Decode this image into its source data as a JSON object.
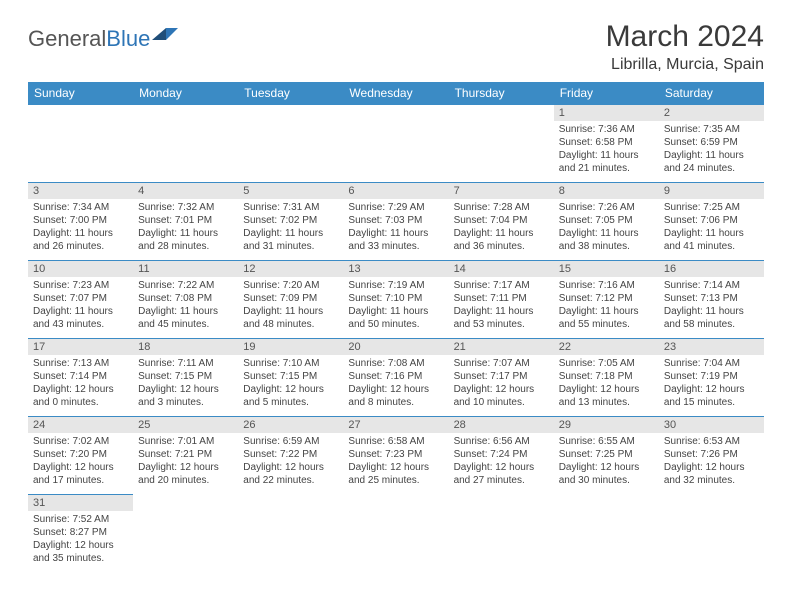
{
  "logo": {
    "general": "General",
    "blue": "Blue"
  },
  "title": "March 2024",
  "location": "Librilla, Murcia, Spain",
  "weekday_labels": [
    "Sunday",
    "Monday",
    "Tuesday",
    "Wednesday",
    "Thursday",
    "Friday",
    "Saturday"
  ],
  "colors": {
    "header_bg": "#3b8bc5",
    "header_fg": "#ffffff",
    "daynum_bg": "#e6e6e6",
    "border": "#3b8bc5"
  },
  "grid": [
    [
      null,
      null,
      null,
      null,
      null,
      {
        "n": "1",
        "sr": "Sunrise: 7:36 AM",
        "ss": "Sunset: 6:58 PM",
        "dl": "Daylight: 11 hours and 21 minutes."
      },
      {
        "n": "2",
        "sr": "Sunrise: 7:35 AM",
        "ss": "Sunset: 6:59 PM",
        "dl": "Daylight: 11 hours and 24 minutes."
      }
    ],
    [
      {
        "n": "3",
        "sr": "Sunrise: 7:34 AM",
        "ss": "Sunset: 7:00 PM",
        "dl": "Daylight: 11 hours and 26 minutes."
      },
      {
        "n": "4",
        "sr": "Sunrise: 7:32 AM",
        "ss": "Sunset: 7:01 PM",
        "dl": "Daylight: 11 hours and 28 minutes."
      },
      {
        "n": "5",
        "sr": "Sunrise: 7:31 AM",
        "ss": "Sunset: 7:02 PM",
        "dl": "Daylight: 11 hours and 31 minutes."
      },
      {
        "n": "6",
        "sr": "Sunrise: 7:29 AM",
        "ss": "Sunset: 7:03 PM",
        "dl": "Daylight: 11 hours and 33 minutes."
      },
      {
        "n": "7",
        "sr": "Sunrise: 7:28 AM",
        "ss": "Sunset: 7:04 PM",
        "dl": "Daylight: 11 hours and 36 minutes."
      },
      {
        "n": "8",
        "sr": "Sunrise: 7:26 AM",
        "ss": "Sunset: 7:05 PM",
        "dl": "Daylight: 11 hours and 38 minutes."
      },
      {
        "n": "9",
        "sr": "Sunrise: 7:25 AM",
        "ss": "Sunset: 7:06 PM",
        "dl": "Daylight: 11 hours and 41 minutes."
      }
    ],
    [
      {
        "n": "10",
        "sr": "Sunrise: 7:23 AM",
        "ss": "Sunset: 7:07 PM",
        "dl": "Daylight: 11 hours and 43 minutes."
      },
      {
        "n": "11",
        "sr": "Sunrise: 7:22 AM",
        "ss": "Sunset: 7:08 PM",
        "dl": "Daylight: 11 hours and 45 minutes."
      },
      {
        "n": "12",
        "sr": "Sunrise: 7:20 AM",
        "ss": "Sunset: 7:09 PM",
        "dl": "Daylight: 11 hours and 48 minutes."
      },
      {
        "n": "13",
        "sr": "Sunrise: 7:19 AM",
        "ss": "Sunset: 7:10 PM",
        "dl": "Daylight: 11 hours and 50 minutes."
      },
      {
        "n": "14",
        "sr": "Sunrise: 7:17 AM",
        "ss": "Sunset: 7:11 PM",
        "dl": "Daylight: 11 hours and 53 minutes."
      },
      {
        "n": "15",
        "sr": "Sunrise: 7:16 AM",
        "ss": "Sunset: 7:12 PM",
        "dl": "Daylight: 11 hours and 55 minutes."
      },
      {
        "n": "16",
        "sr": "Sunrise: 7:14 AM",
        "ss": "Sunset: 7:13 PM",
        "dl": "Daylight: 11 hours and 58 minutes."
      }
    ],
    [
      {
        "n": "17",
        "sr": "Sunrise: 7:13 AM",
        "ss": "Sunset: 7:14 PM",
        "dl": "Daylight: 12 hours and 0 minutes."
      },
      {
        "n": "18",
        "sr": "Sunrise: 7:11 AM",
        "ss": "Sunset: 7:15 PM",
        "dl": "Daylight: 12 hours and 3 minutes."
      },
      {
        "n": "19",
        "sr": "Sunrise: 7:10 AM",
        "ss": "Sunset: 7:15 PM",
        "dl": "Daylight: 12 hours and 5 minutes."
      },
      {
        "n": "20",
        "sr": "Sunrise: 7:08 AM",
        "ss": "Sunset: 7:16 PM",
        "dl": "Daylight: 12 hours and 8 minutes."
      },
      {
        "n": "21",
        "sr": "Sunrise: 7:07 AM",
        "ss": "Sunset: 7:17 PM",
        "dl": "Daylight: 12 hours and 10 minutes."
      },
      {
        "n": "22",
        "sr": "Sunrise: 7:05 AM",
        "ss": "Sunset: 7:18 PM",
        "dl": "Daylight: 12 hours and 13 minutes."
      },
      {
        "n": "23",
        "sr": "Sunrise: 7:04 AM",
        "ss": "Sunset: 7:19 PM",
        "dl": "Daylight: 12 hours and 15 minutes."
      }
    ],
    [
      {
        "n": "24",
        "sr": "Sunrise: 7:02 AM",
        "ss": "Sunset: 7:20 PM",
        "dl": "Daylight: 12 hours and 17 minutes."
      },
      {
        "n": "25",
        "sr": "Sunrise: 7:01 AM",
        "ss": "Sunset: 7:21 PM",
        "dl": "Daylight: 12 hours and 20 minutes."
      },
      {
        "n": "26",
        "sr": "Sunrise: 6:59 AM",
        "ss": "Sunset: 7:22 PM",
        "dl": "Daylight: 12 hours and 22 minutes."
      },
      {
        "n": "27",
        "sr": "Sunrise: 6:58 AM",
        "ss": "Sunset: 7:23 PM",
        "dl": "Daylight: 12 hours and 25 minutes."
      },
      {
        "n": "28",
        "sr": "Sunrise: 6:56 AM",
        "ss": "Sunset: 7:24 PM",
        "dl": "Daylight: 12 hours and 27 minutes."
      },
      {
        "n": "29",
        "sr": "Sunrise: 6:55 AM",
        "ss": "Sunset: 7:25 PM",
        "dl": "Daylight: 12 hours and 30 minutes."
      },
      {
        "n": "30",
        "sr": "Sunrise: 6:53 AM",
        "ss": "Sunset: 7:26 PM",
        "dl": "Daylight: 12 hours and 32 minutes."
      }
    ],
    [
      {
        "n": "31",
        "sr": "Sunrise: 7:52 AM",
        "ss": "Sunset: 8:27 PM",
        "dl": "Daylight: 12 hours and 35 minutes."
      },
      null,
      null,
      null,
      null,
      null,
      null
    ]
  ]
}
